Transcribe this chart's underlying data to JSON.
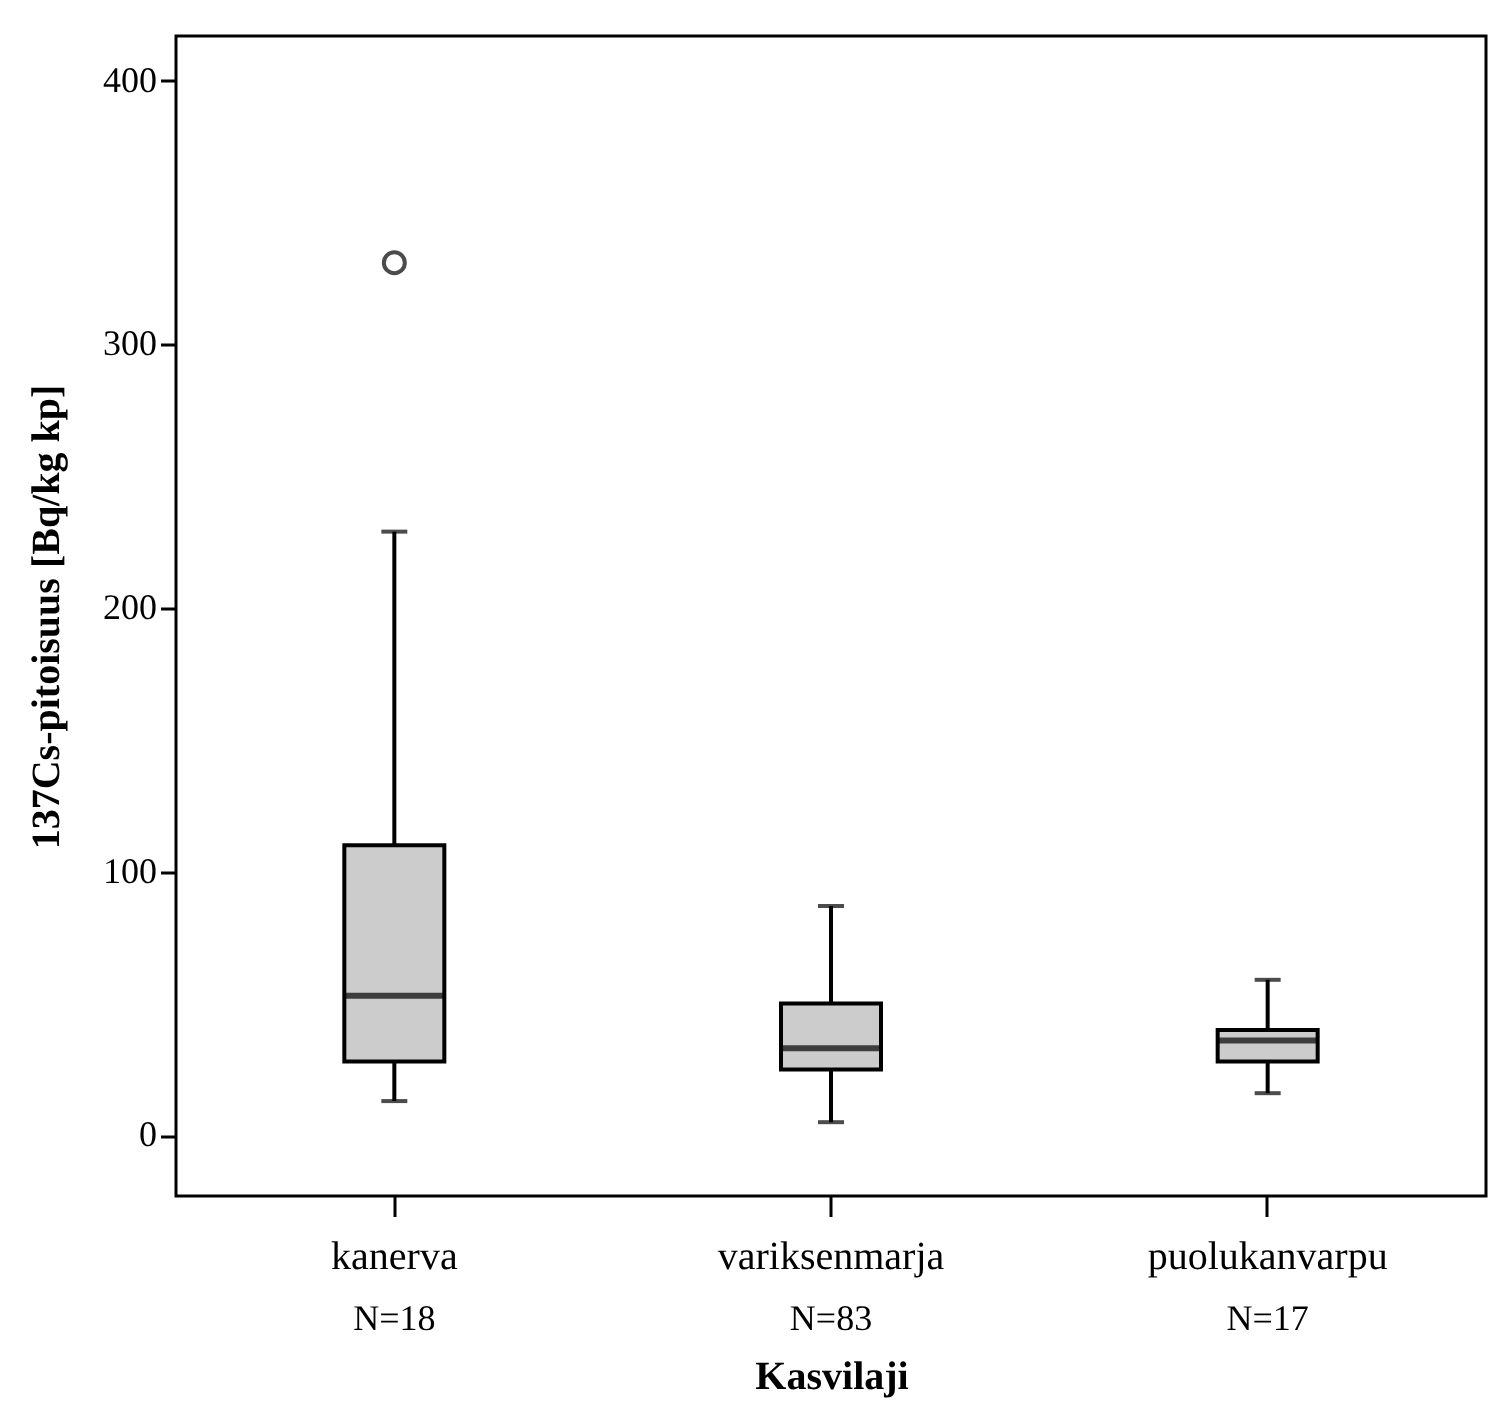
{
  "chart_data": {
    "type": "box",
    "xlabel": "Kasvilaji",
    "ylabel": "137Cs-pitoisuus [Bq/kg kp]",
    "categories": [
      "kanerva",
      "variksenmarja",
      "puolukanvarpu"
    ],
    "boxes": [
      {
        "low": 13,
        "q1": 28,
        "median": 53,
        "q3": 110,
        "high": 229,
        "outliers": [
          331
        ]
      },
      {
        "low": 5,
        "q1": 25,
        "median": 33,
        "q3": 50,
        "high": 87
      },
      {
        "low": 16,
        "q1": 28,
        "median": 36,
        "q3": 40,
        "high": 59
      }
    ],
    "color": "#cccccc",
    "ylim": [
      -23,
      417
    ],
    "yticks": [
      0,
      100,
      200,
      300,
      400
    ],
    "grid": false,
    "annotations": [
      "N=18",
      "N=83",
      "N=17"
    ]
  }
}
